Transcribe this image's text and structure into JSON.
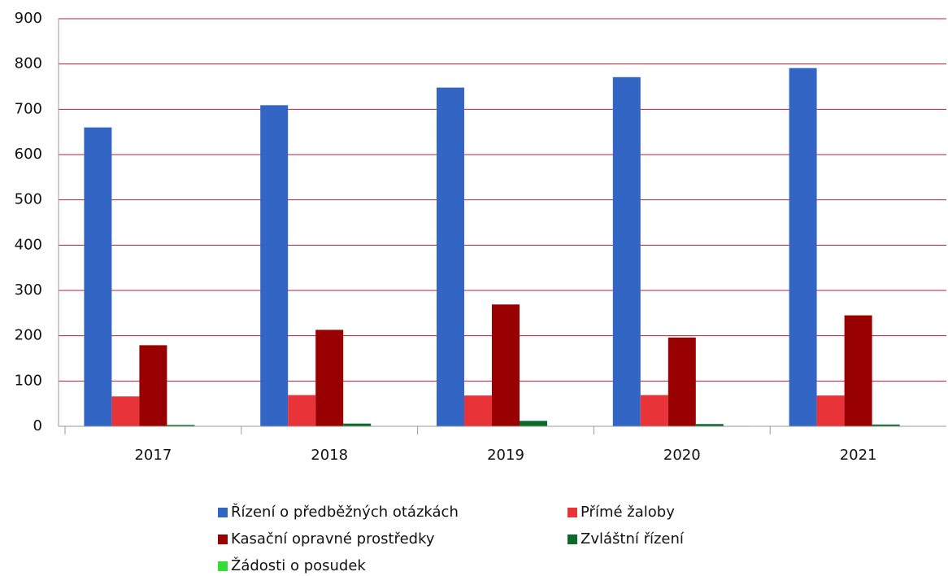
{
  "chart_data": {
    "type": "bar",
    "categories": [
      "2017",
      "2018",
      "2019",
      "2020",
      "2021"
    ],
    "series": [
      {
        "name": "Řízení o předběžných otázkách",
        "color": "#3366c4",
        "values": [
          660,
          709,
          748,
          771,
          791
        ]
      },
      {
        "name": "Přímé žaloby",
        "color": "#e83338",
        "values": [
          66,
          69,
          68,
          69,
          68
        ]
      },
      {
        "name": "Kasační opravné prostředky",
        "color": "#990000",
        "values": [
          179,
          213,
          269,
          196,
          245
        ]
      },
      {
        "name": "Zvláštní řízení",
        "color": "#0b6a2c",
        "values": [
          3,
          6,
          12,
          5,
          4
        ]
      },
      {
        "name": "Žádosti o posudek",
        "color": "#33dd33",
        "values": [
          0,
          0,
          0,
          1,
          0
        ]
      }
    ],
    "ylim": [
      0,
      900
    ],
    "yticks": [
      0,
      100,
      200,
      300,
      400,
      500,
      600,
      700,
      800,
      900
    ],
    "grid": true,
    "grid_color": "#b3203a",
    "legend": "bottom"
  }
}
